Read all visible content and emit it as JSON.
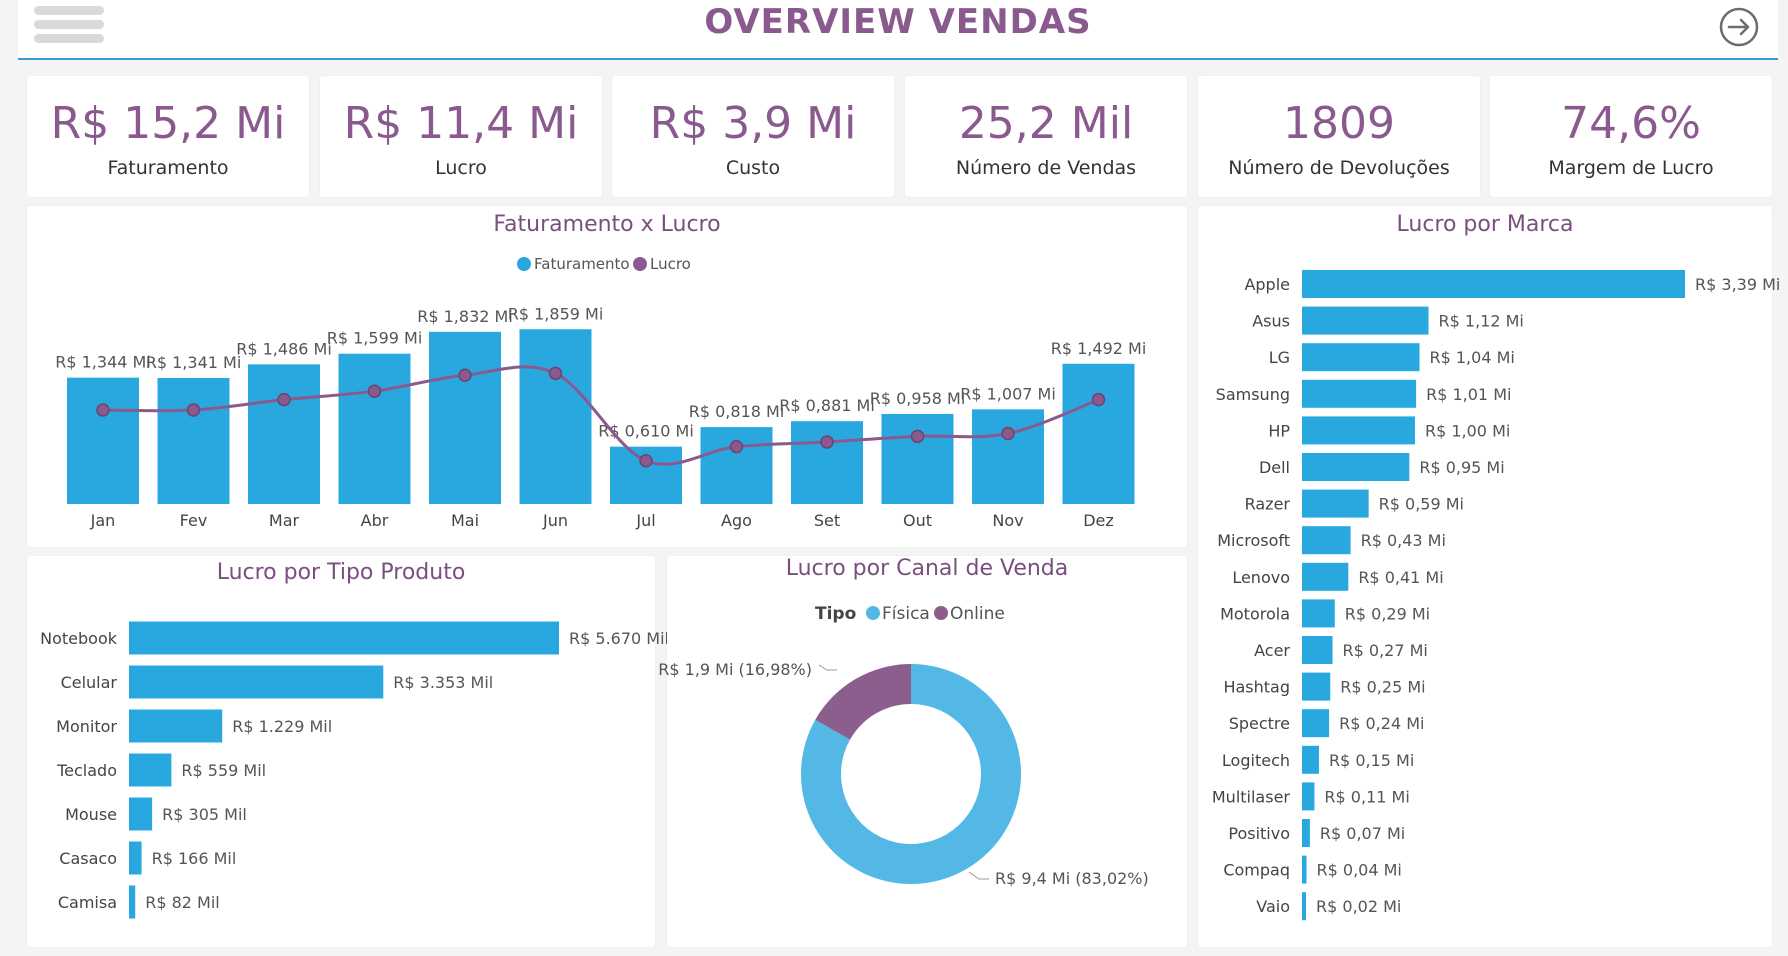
{
  "header": {
    "title": "OVERVIEW VENDAS",
    "menu_icon": "hamburger-menu-icon",
    "nav_icon": "arrow-right-circle-icon"
  },
  "colors": {
    "accent": "#29a8e0",
    "secondary": "#8a5a8e",
    "donut_fisica": "#54b8e6",
    "donut_online": "#8c5e8e"
  },
  "kpis": [
    {
      "value": "R$ 15,2 Mi",
      "label": "Faturamento"
    },
    {
      "value": "R$ 11,4 Mi",
      "label": "Lucro"
    },
    {
      "value": "R$ 3,9 Mi",
      "label": "Custo"
    },
    {
      "value": "25,2 Mil",
      "label": "Número de Vendas"
    },
    {
      "value": "1809",
      "label": "Número de Devoluções"
    },
    {
      "value": "74,6%",
      "label": "Margem de Lucro"
    }
  ],
  "chart_data": [
    {
      "type": "bar",
      "title": "Faturamento x Lucro",
      "legend": [
        "Faturamento",
        "Lucro"
      ],
      "categories": [
        "Jan",
        "Fev",
        "Mar",
        "Abr",
        "Mai",
        "Jun",
        "Jul",
        "Ago",
        "Set",
        "Out",
        "Nov",
        "Dez"
      ],
      "series": [
        {
          "name": "Faturamento",
          "type": "bar",
          "values": [
            1.344,
            1.341,
            1.486,
            1.599,
            1.832,
            1.859,
            0.61,
            0.818,
            0.881,
            0.958,
            1.007,
            1.492
          ],
          "labels": [
            "R$ 1,344 Mi",
            "R$ 1,341 Mi",
            "R$ 1,486 Mi",
            "R$ 1,599 Mi",
            "R$ 1,832 Mi",
            "R$ 1,859 Mi",
            "R$ 0,610 Mi",
            "R$ 0,818 Mi",
            "R$ 0,881 Mi",
            "R$ 0,958 Mi",
            "R$ 1,007 Mi",
            "R$ 1,492 Mi"
          ]
        },
        {
          "name": "Lucro",
          "type": "line",
          "values": [
            1.0,
            1.0,
            1.11,
            1.2,
            1.37,
            1.39,
            0.46,
            0.61,
            0.66,
            0.72,
            0.75,
            1.11
          ]
        }
      ],
      "ylim": [
        0,
        2.0
      ]
    },
    {
      "type": "bar",
      "orientation": "horizontal",
      "title": "Lucro por Marca",
      "categories": [
        "Apple",
        "Asus",
        "LG",
        "Samsung",
        "HP",
        "Dell",
        "Razer",
        "Microsoft",
        "Lenovo",
        "Motorola",
        "Acer",
        "Hashtag",
        "Spectre",
        "Logitech",
        "Multilaser",
        "Positivo",
        "Compaq",
        "Vaio"
      ],
      "values": [
        3.39,
        1.12,
        1.04,
        1.01,
        1.0,
        0.95,
        0.59,
        0.43,
        0.41,
        0.29,
        0.27,
        0.25,
        0.24,
        0.15,
        0.11,
        0.07,
        0.04,
        0.02
      ],
      "labels": [
        "R$ 3,39 Mi",
        "R$ 1,12 Mi",
        "R$ 1,04 Mi",
        "R$ 1,01 Mi",
        "R$ 1,00 Mi",
        "R$ 0,95 Mi",
        "R$ 0,59 Mi",
        "R$ 0,43 Mi",
        "R$ 0,41 Mi",
        "R$ 0,29 Mi",
        "R$ 0,27 Mi",
        "R$ 0,25 Mi",
        "R$ 0,24 Mi",
        "R$ 0,15 Mi",
        "R$ 0,11 Mi",
        "R$ 0,07 Mi",
        "R$ 0,04 Mi",
        "R$ 0,02 Mi"
      ]
    },
    {
      "type": "bar",
      "orientation": "horizontal",
      "title": "Lucro por Tipo Produto",
      "categories": [
        "Notebook",
        "Celular",
        "Monitor",
        "Teclado",
        "Mouse",
        "Casaco",
        "Camisa"
      ],
      "values": [
        5670,
        3353,
        1229,
        559,
        305,
        166,
        82
      ],
      "labels": [
        "R$ 5.670 Mil",
        "R$ 3.353 Mil",
        "R$ 1.229 Mil",
        "R$ 559 Mil",
        "R$ 305 Mil",
        "R$ 166 Mil",
        "R$ 82 Mil"
      ]
    },
    {
      "type": "pie",
      "title": "Lucro por Canal de Venda",
      "legend_title": "Tipo",
      "categories": [
        "Física",
        "Online"
      ],
      "values": [
        9.4,
        1.9
      ],
      "percentages": [
        83.02,
        16.98
      ],
      "labels": [
        "R$ 9,4 Mi (83,02%)",
        "R$ 1,9 Mi (16,98%)"
      ]
    }
  ]
}
